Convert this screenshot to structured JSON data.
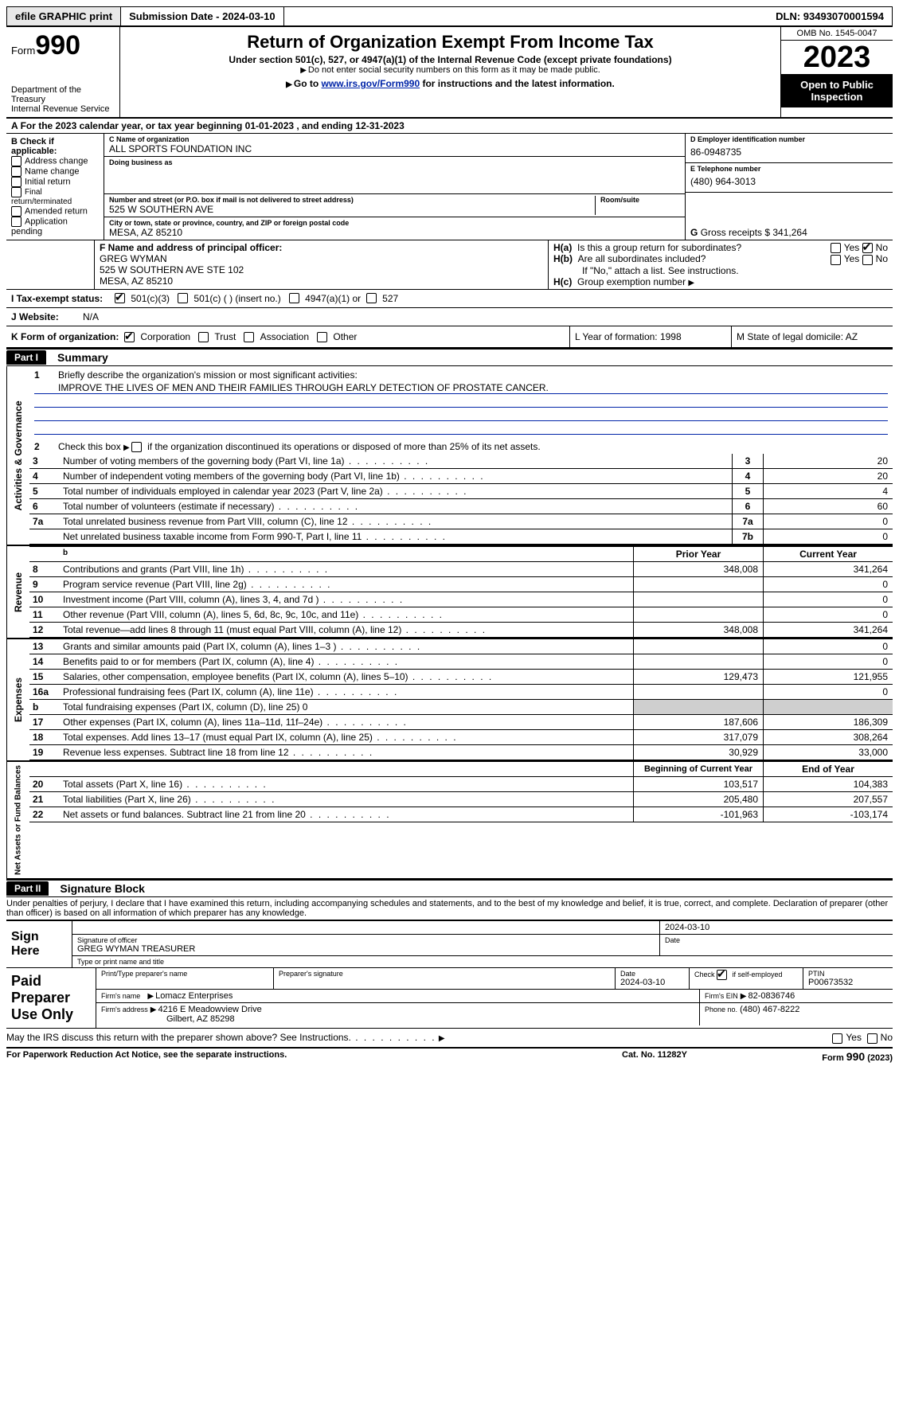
{
  "topbar": {
    "efile": "efile GRAPHIC print",
    "submission": "Submission Date - 2024-03-10",
    "dln": "DLN: 93493070001594"
  },
  "header": {
    "form_label": "Form",
    "form_num": "990",
    "dept": "Department of the Treasury\nInternal Revenue Service",
    "title": "Return of Organization Exempt From Income Tax",
    "sub1": "Under section 501(c), 527, or 4947(a)(1) of the Internal Revenue Code (except private foundations)",
    "sub2": "Do not enter social security numbers on this form as it may be made public.",
    "sub3_pre": "Go to ",
    "sub3_link": "www.irs.gov/Form990",
    "sub3_post": " for instructions and the latest information.",
    "omb": "OMB No. 1545-0047",
    "year": "2023",
    "open": "Open to Public Inspection"
  },
  "period": "For the 2023 calendar year, or tax year beginning 01-01-2023    , and ending 12-31-2023",
  "boxB": {
    "label": "B Check if applicable:",
    "items": [
      "Address change",
      "Name change",
      "Initial return",
      "Final return/terminated",
      "Amended return",
      "Application pending"
    ]
  },
  "boxC": {
    "name_label": "C Name of organization",
    "name": "ALL SPORTS FOUNDATION INC",
    "dba_label": "Doing business as",
    "dba": "",
    "addr_label": "Number and street (or P.O. box if mail is not delivered to street address)",
    "room_label": "Room/suite",
    "addr": "525 W SOUTHERN AVE",
    "city_label": "City or town, state or province, country, and ZIP or foreign postal code",
    "city": "MESA, AZ  85210"
  },
  "boxD": {
    "label": "D Employer identification number",
    "val": "86-0948735"
  },
  "boxE": {
    "label": "E Telephone number",
    "val": "(480) 964-3013"
  },
  "boxG": {
    "label": "G",
    "text": "Gross receipts $ 341,264"
  },
  "boxF": {
    "label": "F  Name and address of principal officer:",
    "name": "GREG WYMAN",
    "addr1": "525 W SOUTHERN AVE STE 102",
    "addr2": "MESA, AZ  85210"
  },
  "boxH": {
    "ha": "H(a)  Is this a group return for subordinates?",
    "hb": "H(b)  Are all subordinates included?",
    "hb_note": "If \"No,\" attach a list. See instructions.",
    "hc": "H(c)  Group exemption number",
    "yes": "Yes",
    "no": "No"
  },
  "boxI": {
    "label": "I   Tax-exempt status:",
    "opt1": "501(c)(3)",
    "opt2": "501(c) (  ) (insert no.)",
    "opt3": "4947(a)(1) or",
    "opt4": "527"
  },
  "boxJ": {
    "label": "J   Website:",
    "val": "N/A"
  },
  "boxK": {
    "label": "K Form of organization:",
    "opts": [
      "Corporation",
      "Trust",
      "Association",
      "Other"
    ]
  },
  "boxL": {
    "label": "L Year of formation: 1998"
  },
  "boxM": {
    "label": "M State of legal domicile: AZ"
  },
  "part1": {
    "label": "Part I",
    "title": "Summary",
    "mission_label": "Briefly describe the organization's mission or most significant activities:",
    "mission": "IMPROVE THE LIVES OF MEN AND THEIR FAMILIES THROUGH EARLY DETECTION OF PROSTATE CANCER.",
    "line2": "Check this box        if the organization discontinued its operations or disposed of more than 25% of its net assets.",
    "lines_gov": [
      {
        "n": "3",
        "d": "Number of voting members of the governing body (Part VI, line 1a)",
        "c": "3",
        "v": "20"
      },
      {
        "n": "4",
        "d": "Number of independent voting members of the governing body (Part VI, line 1b)",
        "c": "4",
        "v": "20"
      },
      {
        "n": "5",
        "d": "Total number of individuals employed in calendar year 2023 (Part V, line 2a)",
        "c": "5",
        "v": "4"
      },
      {
        "n": "6",
        "d": "Total number of volunteers (estimate if necessary)",
        "c": "6",
        "v": "60"
      },
      {
        "n": "7a",
        "d": "Total unrelated business revenue from Part VIII, column (C), line 12",
        "c": "7a",
        "v": "0"
      },
      {
        "n": "",
        "d": "Net unrelated business taxable income from Form 990-T, Part I, line 11",
        "c": "7b",
        "v": "0"
      }
    ],
    "hdr_prior": "Prior Year",
    "hdr_curr": "Current Year",
    "lines_rev": [
      {
        "n": "8",
        "d": "Contributions and grants (Part VIII, line 1h)",
        "p": "348,008",
        "c": "341,264"
      },
      {
        "n": "9",
        "d": "Program service revenue (Part VIII, line 2g)",
        "p": "",
        "c": "0"
      },
      {
        "n": "10",
        "d": "Investment income (Part VIII, column (A), lines 3, 4, and 7d )",
        "p": "",
        "c": "0"
      },
      {
        "n": "11",
        "d": "Other revenue (Part VIII, column (A), lines 5, 6d, 8c, 9c, 10c, and 11e)",
        "p": "",
        "c": "0"
      },
      {
        "n": "12",
        "d": "Total revenue—add lines 8 through 11 (must equal Part VIII, column (A), line 12)",
        "p": "348,008",
        "c": "341,264"
      }
    ],
    "lines_exp": [
      {
        "n": "13",
        "d": "Grants and similar amounts paid (Part IX, column (A), lines 1–3 )",
        "p": "",
        "c": "0"
      },
      {
        "n": "14",
        "d": "Benefits paid to or for members (Part IX, column (A), line 4)",
        "p": "",
        "c": "0"
      },
      {
        "n": "15",
        "d": "Salaries, other compensation, employee benefits (Part IX, column (A), lines 5–10)",
        "p": "129,473",
        "c": "121,955"
      },
      {
        "n": "16a",
        "d": "Professional fundraising fees (Part IX, column (A), line 11e)",
        "p": "",
        "c": "0"
      },
      {
        "n": "b",
        "d": "Total fundraising expenses (Part IX, column (D), line 25) 0",
        "p": "GREY",
        "c": "GREY"
      },
      {
        "n": "17",
        "d": "Other expenses (Part IX, column (A), lines 11a–11d, 11f–24e)",
        "p": "187,606",
        "c": "186,309"
      },
      {
        "n": "18",
        "d": "Total expenses. Add lines 13–17 (must equal Part IX, column (A), line 25)",
        "p": "317,079",
        "c": "308,264"
      },
      {
        "n": "19",
        "d": "Revenue less expenses. Subtract line 18 from line 12",
        "p": "30,929",
        "c": "33,000"
      }
    ],
    "hdr_beg": "Beginning of Current Year",
    "hdr_end": "End of Year",
    "lines_net": [
      {
        "n": "20",
        "d": "Total assets (Part X, line 16)",
        "p": "103,517",
        "c": "104,383"
      },
      {
        "n": "21",
        "d": "Total liabilities (Part X, line 26)",
        "p": "205,480",
        "c": "207,557"
      },
      {
        "n": "22",
        "d": "Net assets or fund balances. Subtract line 21 from line 20",
        "p": "-101,963",
        "c": "-103,174"
      }
    ]
  },
  "part2": {
    "label": "Part II",
    "title": "Signature Block",
    "penalty": "Under penalties of perjury, I declare that I have examined this return, including accompanying schedules and statements, and to the best of my knowledge and belief, it is true, correct, and complete. Declaration of preparer (other than officer) is based on all information of which preparer has any knowledge."
  },
  "sign": {
    "here": "Sign Here",
    "date": "2024-03-10",
    "sig_label": "Signature of officer",
    "officer": "GREG WYMAN  TREASURER",
    "type_label": "Type or print name and title",
    "date_label": "Date"
  },
  "paid": {
    "label": "Paid Preparer Use Only",
    "pname_label": "Print/Type preparer's name",
    "psig_label": "Preparer's signature",
    "pdate_label": "Date",
    "pdate": "2024-03-10",
    "check_label": "Check         if self-employed",
    "ptin_label": "PTIN",
    "ptin": "P00673532",
    "firm_label": "Firm's name",
    "firm": "Lomacz Enterprises",
    "firm_ein_label": "Firm's EIN",
    "firm_ein": "82-0836746",
    "firm_addr_label": "Firm's address",
    "firm_addr1": "4216 E Meadowview Drive",
    "firm_addr2": "Gilbert, AZ  85298",
    "phone_label": "Phone no.",
    "phone": "(480) 467-8222"
  },
  "discuss": "May the IRS discuss this return with the preparer shown above? See Instructions.",
  "footer": {
    "left": "For Paperwork Reduction Act Notice, see the separate instructions.",
    "mid": "Cat. No. 11282Y",
    "right": "Form 990 (2023)"
  }
}
